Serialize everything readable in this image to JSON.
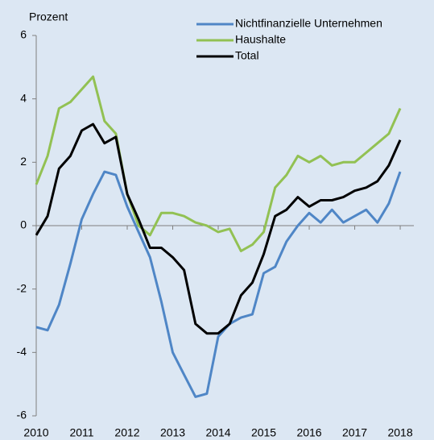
{
  "chart_data": {
    "type": "line",
    "y_label": "Prozent",
    "x": [
      2010.0,
      2010.25,
      2010.5,
      2010.75,
      2011.0,
      2011.25,
      2011.5,
      2011.75,
      2012.0,
      2012.25,
      2012.5,
      2012.75,
      2013.0,
      2013.25,
      2013.5,
      2013.75,
      2014.0,
      2014.25,
      2014.5,
      2014.75,
      2015.0,
      2015.25,
      2015.5,
      2015.75,
      2016.0,
      2016.25,
      2016.5,
      2016.75,
      2017.0,
      2017.25,
      2017.5,
      2017.75,
      2018.0
    ],
    "series": [
      {
        "name": "Nichtfinanzielle Unternehmen",
        "color": "#4f86c6",
        "values": [
          -3.2,
          -3.3,
          -2.5,
          -1.2,
          0.2,
          1.0,
          1.7,
          1.6,
          0.6,
          -0.2,
          -1.0,
          -2.4,
          -4.0,
          -4.7,
          -5.4,
          -5.3,
          -3.5,
          -3.1,
          -2.9,
          -2.8,
          -1.5,
          -1.3,
          -0.5,
          0.0,
          0.4,
          0.1,
          0.5,
          0.1,
          0.3,
          0.5,
          0.1,
          0.7,
          1.7
        ]
      },
      {
        "name": "Haushalte",
        "color": "#92c153",
        "values": [
          1.3,
          2.2,
          3.7,
          3.9,
          4.3,
          4.7,
          3.3,
          2.9,
          1.0,
          0.0,
          -0.3,
          0.4,
          0.4,
          0.3,
          0.1,
          0.0,
          -0.2,
          -0.1,
          -0.8,
          -0.6,
          -0.2,
          1.2,
          1.6,
          2.2,
          2.0,
          2.2,
          1.9,
          2.0,
          2.0,
          2.3,
          2.6,
          2.9,
          3.7
        ]
      },
      {
        "name": "Total",
        "color": "#000000",
        "values": [
          -0.3,
          0.3,
          1.8,
          2.2,
          3.0,
          3.2,
          2.6,
          2.8,
          1.0,
          0.2,
          -0.7,
          -0.7,
          -1.0,
          -1.4,
          -3.1,
          -3.4,
          -3.4,
          -3.1,
          -2.2,
          -1.8,
          -0.9,
          0.3,
          0.5,
          0.9,
          0.6,
          0.8,
          0.8,
          0.9,
          1.1,
          1.2,
          1.4,
          1.9,
          2.7
        ]
      }
    ],
    "xlim": [
      2010,
      2018.3
    ],
    "xticks": [
      2010,
      2011,
      2012,
      2013,
      2014,
      2015,
      2016,
      2017,
      2018
    ],
    "ylim": [
      -6,
      6
    ],
    "yticks": [
      -6,
      -4,
      -2,
      0,
      2,
      4,
      6
    ]
  }
}
